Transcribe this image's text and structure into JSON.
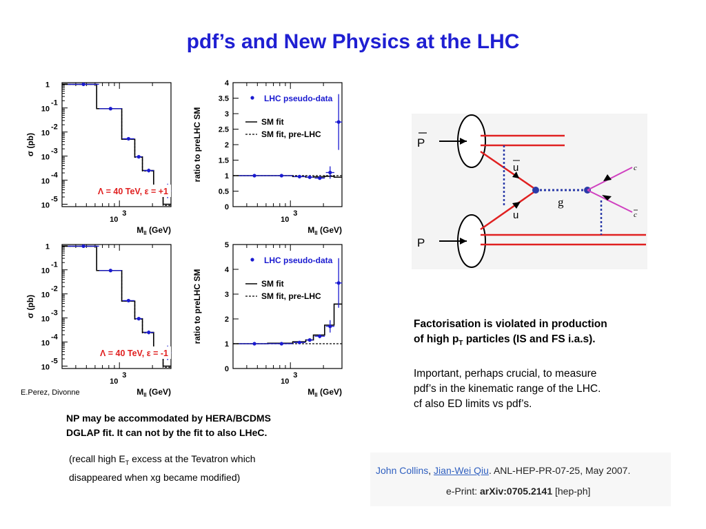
{
  "title": "pdf’s and New Physics at the LHC",
  "credit": "E.Perez, Divonne",
  "left_note_1": "NP may be accommodated by HERA/BCDMS",
  "left_note_2": "DGLAP fit. It can not by the fit to also LHeC.",
  "recall_1a": "(recall high E",
  "recall_1sub": "T",
  "recall_1b": " excess at the Tevatron which",
  "recall_2": "disappeared when xg became modified)",
  "right_note_1": "Factorisation is  violated in production",
  "right_note_2a": "of high p",
  "right_note_2sub": "T",
  "right_note_2b": " particles (IS and FS i.a.s).",
  "right_note_3": "Important, perhaps crucial, to measure",
  "right_note_4": "pdf’s in the kinematic range of the LHC.",
  "right_note_5": "cf also ED limits vs pdf’s.",
  "ref": {
    "author1": "John Collins",
    "author2": "Jian-Wei Qiu",
    "rest": ". ANL-HEP-PR-07-25, May 2007.",
    "eprint_label": "e-Print: ",
    "eprint": "arXiv:0705.2141",
    "category": " [hep-ph]"
  },
  "diagram": {
    "labels": {
      "pbar": "P",
      "p": "P",
      "ubar": "u",
      "u": "u",
      "g": "g",
      "c": "c",
      "cbar": "c"
    },
    "colors": {
      "quark": "#e02020",
      "gluon": "#2a3aa8",
      "charm": "#d040c0",
      "arrow": "#000000"
    }
  },
  "colors": {
    "title": "#1f1fd2",
    "data": "#1a1ad0",
    "lambda_text": "#e02020"
  },
  "chart_data": [
    {
      "type": "line",
      "panel": "top-left",
      "ylabel_symbol": "σ",
      "ylabel_unit": "(pb)",
      "xlabel_main": "M",
      "xlabel_sub": "ll",
      "xlabel_unit": "(GeV)",
      "x_ticklabel": "10",
      "x_ticklabel_exp": "3",
      "y_ticks": [
        {
          "base": "1",
          "exp": ""
        },
        {
          "base": "10",
          "exp": "-1"
        },
        {
          "base": "10",
          "exp": "-2"
        },
        {
          "base": "10",
          "exp": "-3"
        },
        {
          "base": "10",
          "exp": "-4"
        },
        {
          "base": "10",
          "exp": "-5"
        }
      ],
      "ylim_log10": [
        -5,
        0
      ],
      "xlim": [
        300,
        2950
      ],
      "annotation": "Λ = 40 TeV, ε = +1",
      "bin_edges": [
        300,
        620,
        1050,
        1380,
        1620,
        2050,
        2500,
        2950
      ],
      "solid_log10": [
        -0.02,
        -1.03,
        -2.3,
        -3.03,
        -3.6,
        -4.45,
        -5.0
      ],
      "dashed_log10": [
        -0.02,
        -1.03,
        -2.3,
        -3.05,
        -3.62,
        -4.5,
        -5.05
      ],
      "data_x": [
        470,
        830,
        1210,
        1500,
        1850,
        2300,
        2750
      ],
      "data_log10": [
        -0.02,
        -1.03,
        -2.28,
        -3.03,
        -3.6,
        -4.42,
        -4.45
      ],
      "data_err": [
        0,
        0,
        0,
        0.05,
        0.08,
        0.15,
        0.3
      ]
    },
    {
      "type": "line",
      "panel": "top-right",
      "ylabel": "ratio to preLHC SM",
      "xlabel_main": "M",
      "xlabel_sub": "ll",
      "xlabel_unit": "(GeV)",
      "x_ticklabel": "10",
      "x_ticklabel_exp": "3",
      "yticks": [
        "0",
        "0.5",
        "1",
        "1.5",
        "2",
        "2.5",
        "3",
        "3.5",
        "4"
      ],
      "ylim": [
        0,
        4
      ],
      "xlim": [
        300,
        2950
      ],
      "legend": [
        "LHC pseudo-data",
        "SM fit",
        "SM fit, pre-LHC"
      ],
      "bin_edges": [
        300,
        620,
        1050,
        1380,
        1620,
        2050,
        2500,
        2950
      ],
      "solid": [
        1.0,
        1.0,
        0.97,
        0.95,
        0.96,
        0.98,
        0.95
      ],
      "dashed": [
        1.0,
        1.0,
        1.0,
        1.0,
        1.0,
        1.0,
        1.0
      ],
      "data_x": [
        470,
        830,
        1210,
        1500,
        1850,
        2300,
        2750
      ],
      "data": [
        1.0,
        1.0,
        0.97,
        0.95,
        0.92,
        1.1,
        2.73
      ],
      "data_err": [
        0,
        0,
        0.02,
        0.03,
        0.05,
        0.2,
        0.9
      ]
    },
    {
      "type": "line",
      "panel": "bottom-left",
      "ylabel_symbol": "σ",
      "ylabel_unit": "(pb)",
      "xlabel_main": "M",
      "xlabel_sub": "ll",
      "xlabel_unit": "(GeV)",
      "x_ticklabel": "10",
      "x_ticklabel_exp": "3",
      "y_ticks": [
        {
          "base": "1",
          "exp": ""
        },
        {
          "base": "10",
          "exp": "-1"
        },
        {
          "base": "10",
          "exp": "-2"
        },
        {
          "base": "10",
          "exp": "-3"
        },
        {
          "base": "10",
          "exp": "-4"
        },
        {
          "base": "10",
          "exp": "-5"
        }
      ],
      "ylim_log10": [
        -5,
        0
      ],
      "xlim": [
        300,
        2950
      ],
      "annotation": "Λ = 40 TeV, ε = -1",
      "bin_edges": [
        300,
        620,
        1050,
        1380,
        1620,
        2050,
        2500,
        2950
      ],
      "solid_log10": [
        -0.02,
        -1.03,
        -2.3,
        -3.03,
        -3.6,
        -4.45,
        -5.0
      ],
      "dashed_log10": [
        -0.02,
        -1.03,
        -2.3,
        -3.05,
        -3.62,
        -4.5,
        -5.05
      ],
      "data_x": [
        470,
        830,
        1210,
        1500,
        1850,
        2300,
        2750
      ],
      "data_log10": [
        -0.02,
        -1.03,
        -2.28,
        -3.03,
        -3.6,
        -4.42,
        -4.45
      ],
      "data_err": [
        0,
        0,
        0,
        0.05,
        0.08,
        0.15,
        0.3
      ]
    },
    {
      "type": "line",
      "panel": "bottom-right",
      "ylabel": "ratio to preLHC SM",
      "xlabel_main": "M",
      "xlabel_sub": "ll",
      "xlabel_unit": "(GeV)",
      "x_ticklabel": "10",
      "x_ticklabel_exp": "3",
      "yticks": [
        "0",
        "1",
        "2",
        "3",
        "4",
        "5"
      ],
      "ylim": [
        0,
        5
      ],
      "xlim": [
        300,
        2950
      ],
      "legend": [
        "LHC pseudo-data",
        "SM fit",
        "SM fit, pre-LHC"
      ],
      "bin_edges": [
        300,
        620,
        1050,
        1380,
        1620,
        2050,
        2500,
        2950
      ],
      "solid": [
        1.0,
        1.02,
        1.08,
        1.15,
        1.35,
        1.75,
        2.6
      ],
      "dashed": [
        1.0,
        1.0,
        1.0,
        1.0,
        1.0,
        1.0,
        1.0
      ],
      "data_x": [
        470,
        830,
        1210,
        1500,
        1850,
        2300,
        2750
      ],
      "data": [
        1.0,
        1.0,
        1.05,
        1.15,
        1.3,
        1.7,
        3.45
      ],
      "data_err": [
        0,
        0,
        0.03,
        0.05,
        0.08,
        0.25,
        1.0
      ]
    }
  ]
}
